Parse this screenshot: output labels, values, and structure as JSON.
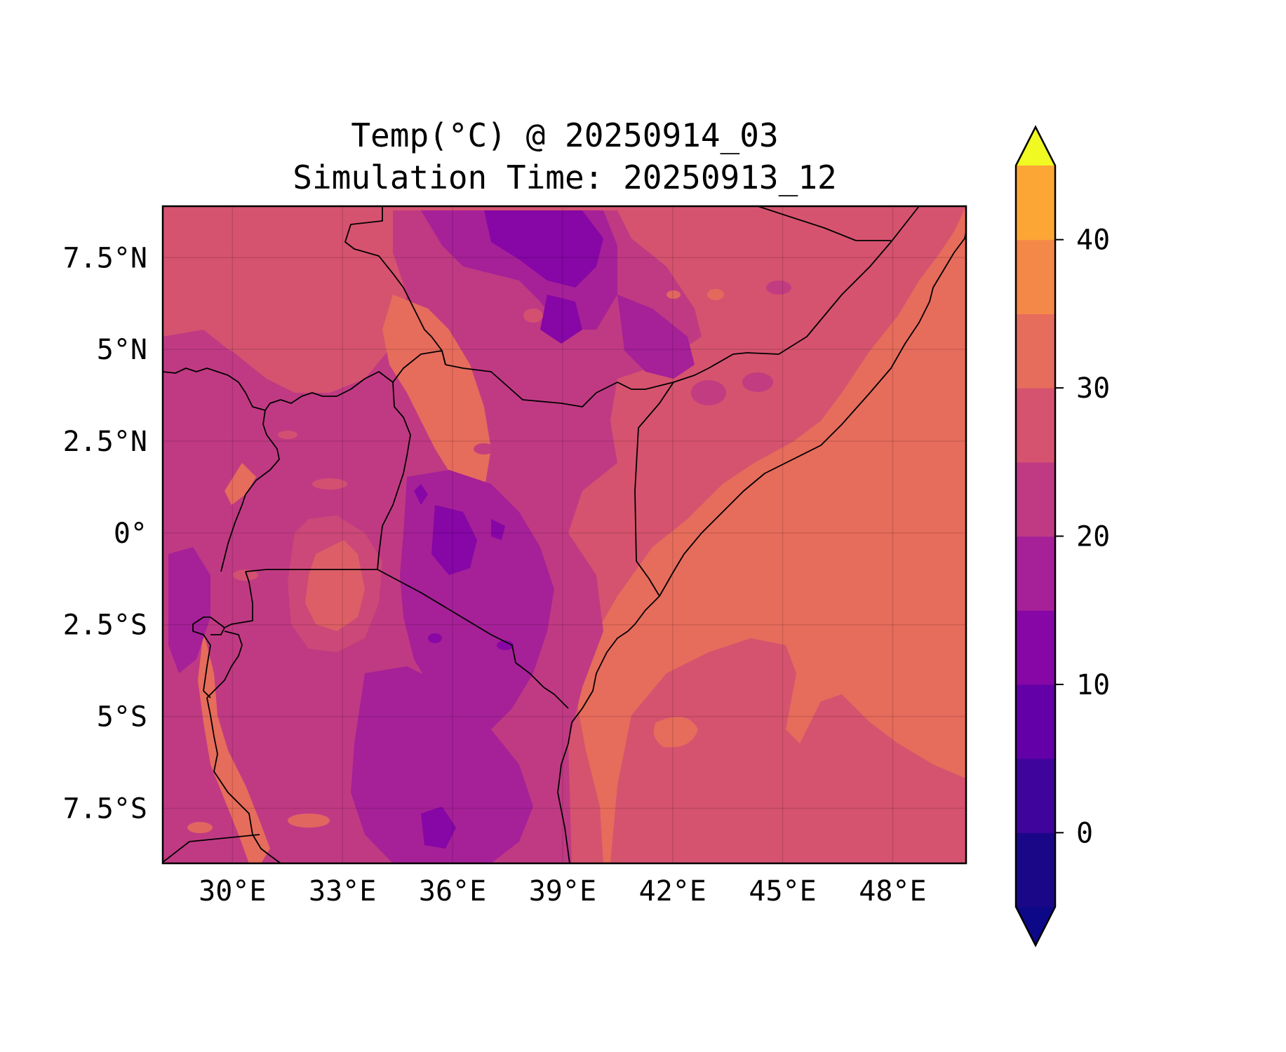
{
  "title": {
    "line1": "Temp(°C) @ 20250914_03",
    "line2": "Simulation Time: 20250913_12"
  },
  "map": {
    "lon_range": [
      28.1,
      50.0
    ],
    "lat_range": [
      -9.0,
      8.9
    ],
    "grid": true,
    "x_ticks": [
      "30°E",
      "33°E",
      "36°E",
      "39°E",
      "42°E",
      "45°E",
      "48°E"
    ],
    "x_tick_values": [
      30,
      33,
      36,
      39,
      42,
      45,
      48
    ],
    "y_ticks": [
      "7.5°N",
      "5°N",
      "2.5°N",
      "0°",
      "2.5°S",
      "5°S",
      "7.5°S"
    ],
    "y_tick_values": [
      7.5,
      5,
      2.5,
      0,
      -2.5,
      -5,
      -7.5
    ]
  },
  "colorbar": {
    "levels": [
      -5,
      0,
      5,
      10,
      15,
      20,
      25,
      30,
      35,
      40,
      45
    ],
    "tick_labels": [
      "0",
      "10",
      "20",
      "30",
      "40"
    ],
    "tick_values": [
      0,
      10,
      20,
      30,
      40
    ],
    "colors": [
      "#1a0788",
      "#3e049c",
      "#6300a7",
      "#8606a6",
      "#a62098",
      "#c03a83",
      "#d5536f",
      "#e66c5c",
      "#f48849",
      "#fca636",
      "#f5e626"
    ],
    "under_color": "#0d0887",
    "over_color": "#f0f921"
  }
}
